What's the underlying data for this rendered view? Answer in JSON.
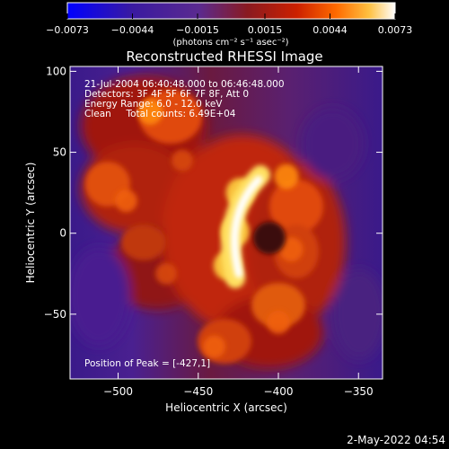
{
  "chart_data": {
    "type": "heatmap",
    "title": "Reconstructed RHESSI Image",
    "xlabel": "Heliocentric X (arcsec)",
    "ylabel": "Heliocentric Y (arcsec)",
    "xlim": [
      -530,
      -335
    ],
    "ylim": [
      -90,
      103
    ],
    "xticks": [
      -500,
      -450,
      -400,
      -350
    ],
    "yticks": [
      100,
      50,
      0,
      -50
    ],
    "xtick_labels": [
      "−500",
      "−450",
      "−400",
      "−350"
    ],
    "ytick_labels": [
      "100",
      "50",
      "0",
      "−50"
    ],
    "colorbar": {
      "min": -0.0073,
      "max": 0.0073,
      "ticks": [
        -0.0073,
        -0.0044,
        -0.0015,
        0.0015,
        0.0044,
        0.0073
      ],
      "tick_labels": [
        "−0.0073",
        "−0.0044",
        "−0.0015",
        "0.0015",
        "0.0044",
        "0.0073"
      ],
      "unit_label": "(photons cm⁻² s⁻¹ asec⁻²)",
      "colors": [
        "#0000ff",
        "#3a1aa0",
        "#5a2a90",
        "#8a1a20",
        "#cc2000",
        "#ff6a00",
        "#ffc040",
        "#ffffff"
      ]
    },
    "annotations": {
      "time_range": "21-Jul-2004 06:40:48.000 to 06:46:48.000",
      "detectors": "Detectors: 3F 4F 5F 6F 7F 8F, Att 0",
      "energy": "Energy Range: 6.0 - 12.0 keV",
      "clean": "Clean     Total counts: 6.49E+04",
      "peak": "Position of Peak = [-427,1]"
    },
    "peak": {
      "x": -427,
      "y": 1
    },
    "bright_features": [
      {
        "x": -427,
        "y": 1,
        "level": 1.0
      },
      {
        "x": -424,
        "y": 25,
        "level": 0.95
      },
      {
        "x": -432,
        "y": -20,
        "level": 0.9
      },
      {
        "x": -480,
        "y": 75,
        "level": 0.75
      },
      {
        "x": -395,
        "y": 35,
        "level": 0.7
      },
      {
        "x": -392,
        "y": -10,
        "level": 0.65
      },
      {
        "x": -400,
        "y": -55,
        "level": 0.6
      },
      {
        "x": -440,
        "y": -70,
        "level": 0.55
      },
      {
        "x": -495,
        "y": 20,
        "level": 0.55
      },
      {
        "x": -470,
        "y": -25,
        "level": 0.5
      },
      {
        "x": -460,
        "y": 45,
        "level": 0.5
      }
    ]
  },
  "footer": {
    "date_stamp": "2-May-2022 04:54"
  }
}
